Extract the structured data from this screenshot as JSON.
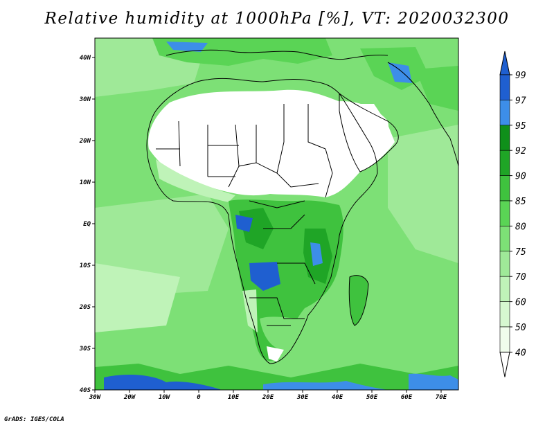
{
  "title": "Relative humidity at 1000hPa [%], VT: 2020032300",
  "credit": "GrADS: IGES/COLA",
  "map": {
    "region": "Africa",
    "field": "relative humidity",
    "lon_range": [
      -30,
      75
    ],
    "lat_range": [
      -40,
      45
    ],
    "x_ticks": [
      "30W",
      "20W",
      "10W",
      "0",
      "10E",
      "20E",
      "30E",
      "40E",
      "50E",
      "60E",
      "70E"
    ],
    "y_ticks": [
      "40N",
      "30N",
      "20N",
      "10N",
      "EQ",
      "10S",
      "20S",
      "30S",
      "40S"
    ]
  },
  "colorbar": {
    "levels": [
      "99",
      "97",
      "95",
      "92",
      "90",
      "85",
      "80",
      "75",
      "70",
      "60",
      "50",
      "40"
    ],
    "colors": [
      "#1f5fd0",
      "#3d8ee8",
      "#0f8f1a",
      "#1fa526",
      "#3fc23e",
      "#5ad455",
      "#7de076",
      "#9fe998",
      "#bff3b8",
      "#d6f8d0",
      "#f0fdec"
    ],
    "top_triangle_color": "#1f5fd0",
    "bottom_triangle_color": "#ffffff"
  }
}
